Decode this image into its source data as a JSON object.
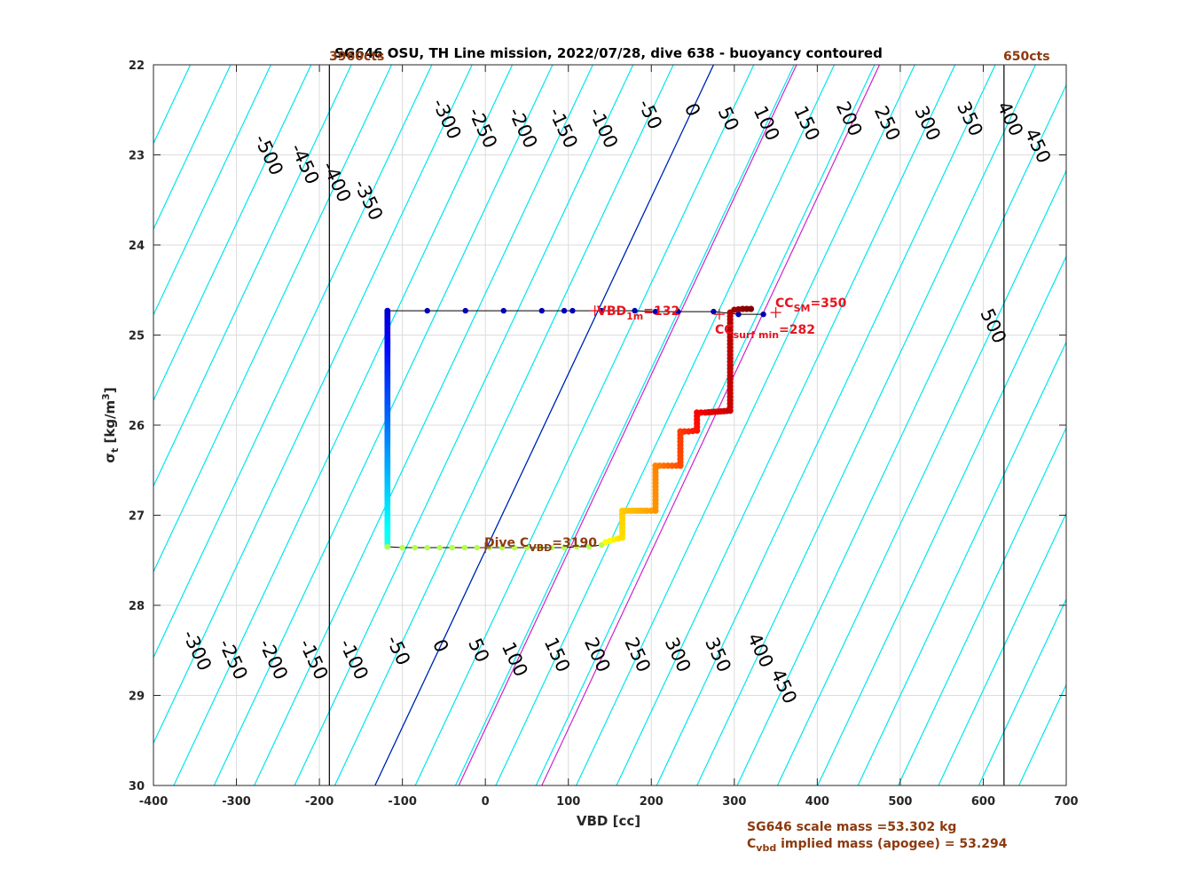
{
  "chart_data": {
    "type": "scatter",
    "title": "SG646 OSU, TH Line mission, 2022/07/28, dive 638 - buoyancy contoured",
    "xlabel": "VBD [cc]",
    "ylabel_main": "σ",
    "ylabel_sub": "t",
    "ylabel_rest": " [kg/m",
    "ylabel_sup": "3",
    "ylabel_end": "]",
    "xlim": [
      -400,
      700
    ],
    "ylim": [
      22,
      30
    ],
    "y_reversed": true,
    "grid": true,
    "xticks": [
      -400,
      -300,
      -200,
      -100,
      0,
      100,
      200,
      300,
      400,
      500,
      600,
      700
    ],
    "yticks": [
      22,
      23,
      24,
      25,
      26,
      27,
      28,
      29,
      30
    ],
    "contours": {
      "color": "#00e5ee",
      "levels": [
        -500,
        -450,
        -400,
        -350,
        -300,
        -250,
        -200,
        -150,
        -100,
        -50,
        0,
        50,
        100,
        150,
        200,
        250,
        300,
        350,
        400,
        450,
        500
      ],
      "x_at_sigma_22_for_zero": 275,
      "x_at_sigma_30_for_zero": -133,
      "spacing_cc_per_50": 48.5,
      "top_labels": [
        {
          "text": "-500",
          "level": -500,
          "sigma": 23.0
        },
        {
          "text": "-450",
          "level": -450,
          "sigma": 23.1
        },
        {
          "text": "-400",
          "level": -400,
          "sigma": 23.3
        },
        {
          "text": "-350",
          "level": -350,
          "sigma": 23.5
        },
        {
          "text": "-300",
          "level": -300,
          "sigma": 22.6
        },
        {
          "text": "-250",
          "level": -250,
          "sigma": 22.7
        },
        {
          "text": "-200",
          "level": -200,
          "sigma": 22.7
        },
        {
          "text": "-150",
          "level": -150,
          "sigma": 22.7
        },
        {
          "text": "-100",
          "level": -100,
          "sigma": 22.7
        },
        {
          "text": "-50",
          "level": -50,
          "sigma": 22.55
        },
        {
          "text": "0",
          "level": 0,
          "sigma": 22.5
        },
        {
          "text": "50",
          "level": 50,
          "sigma": 22.6
        },
        {
          "text": "100",
          "level": 100,
          "sigma": 22.65
        },
        {
          "text": "150",
          "level": 150,
          "sigma": 22.65
        },
        {
          "text": "200",
          "level": 200,
          "sigma": 22.6
        },
        {
          "text": "250",
          "level": 250,
          "sigma": 22.65
        },
        {
          "text": "300",
          "level": 300,
          "sigma": 22.65
        },
        {
          "text": "350",
          "level": 350,
          "sigma": 22.6
        },
        {
          "text": "400",
          "level": 400,
          "sigma": 22.6
        },
        {
          "text": "450",
          "level": 450,
          "sigma": 22.9
        },
        {
          "text": "500",
          "level": 500,
          "sigma": 24.9
        }
      ],
      "bottom_labels": [
        {
          "text": "-300",
          "level": -300,
          "sigma": 28.5
        },
        {
          "text": "-250",
          "level": -250,
          "sigma": 28.6
        },
        {
          "text": "-200",
          "level": -200,
          "sigma": 28.6
        },
        {
          "text": "-150",
          "level": -150,
          "sigma": 28.6
        },
        {
          "text": "-100",
          "level": -100,
          "sigma": 28.6
        },
        {
          "text": "-50",
          "level": -50,
          "sigma": 28.5
        },
        {
          "text": "0",
          "level": 0,
          "sigma": 28.45
        },
        {
          "text": "50",
          "level": 50,
          "sigma": 28.5
        },
        {
          "text": "100",
          "level": 100,
          "sigma": 28.6
        },
        {
          "text": "150",
          "level": 150,
          "sigma": 28.55
        },
        {
          "text": "200",
          "level": 200,
          "sigma": 28.55
        },
        {
          "text": "250",
          "level": 250,
          "sigma": 28.55
        },
        {
          "text": "300",
          "level": 300,
          "sigma": 28.55
        },
        {
          "text": "350",
          "level": 350,
          "sigma": 28.55
        },
        {
          "text": "400",
          "level": 400,
          "sigma": 28.5
        },
        {
          "text": "450",
          "level": 450,
          "sigma": 28.9
        }
      ]
    },
    "zero_line": {
      "color": "#0016b4",
      "x_top": 275,
      "x_bottom": -133
    },
    "magenta_lines": {
      "color": "#cc22cc",
      "lines": [
        {
          "x_top": 375,
          "x_bottom": -32
        },
        {
          "x_top": 475,
          "x_bottom": 68
        }
      ]
    },
    "vertical_lines": [
      {
        "x": -188,
        "label": "3960cts"
      },
      {
        "x": 625,
        "label": "650cts"
      }
    ],
    "track": {
      "color": "#000000",
      "points": [
        [
          -118,
          24.73
        ],
        [
          -70,
          24.73
        ],
        [
          -24,
          24.73
        ],
        [
          22,
          24.73
        ],
        [
          68,
          24.73
        ],
        [
          95,
          24.73
        ],
        [
          105,
          24.73
        ],
        [
          140,
          24.73
        ],
        [
          180,
          24.73
        ],
        [
          205,
          24.74
        ],
        [
          232,
          24.74
        ],
        [
          275,
          24.74
        ],
        [
          305,
          24.77
        ],
        [
          335,
          24.77
        ]
      ],
      "descent_x": -118,
      "descent_sigma": [
        24.73,
        27.35
      ],
      "bottom_points": [
        [
          -118,
          27.35
        ],
        [
          -100,
          27.36
        ],
        [
          -85,
          27.36
        ],
        [
          -70,
          27.36
        ],
        [
          -55,
          27.36
        ],
        [
          -40,
          27.36
        ],
        [
          -25,
          27.36
        ],
        [
          -10,
          27.36
        ],
        [
          5,
          27.36
        ],
        [
          20,
          27.36
        ],
        [
          35,
          27.36
        ],
        [
          50,
          27.36
        ],
        [
          65,
          27.36
        ],
        [
          80,
          27.36
        ],
        [
          95,
          27.36
        ],
        [
          110,
          27.35
        ],
        [
          125,
          27.35
        ],
        [
          140,
          27.33
        ]
      ],
      "ascent_points": [
        [
          145,
          27.3
        ],
        [
          155,
          27.27
        ],
        [
          165,
          27.25
        ],
        [
          165,
          26.95
        ],
        [
          180,
          26.95
        ],
        [
          195,
          26.95
        ],
        [
          205,
          26.95
        ],
        [
          205,
          26.45
        ],
        [
          215,
          26.45
        ],
        [
          225,
          26.45
        ],
        [
          235,
          26.45
        ],
        [
          235,
          26.07
        ],
        [
          245,
          26.07
        ],
        [
          255,
          26.06
        ],
        [
          255,
          25.86
        ],
        [
          265,
          25.86
        ],
        [
          280,
          25.85
        ],
        [
          295,
          25.84
        ],
        [
          295,
          24.75
        ],
        [
          300,
          24.72
        ],
        [
          310,
          24.71
        ],
        [
          320,
          24.71
        ]
      ]
    },
    "annotations": {
      "vbd1m": {
        "prefix": "VBD",
        "sub": "1m",
        "suffix": "=132",
        "x": 132,
        "sigma": 24.73
      },
      "ccsm": {
        "prefix": "CC",
        "sub": "SM",
        "suffix": "=350",
        "x": 350,
        "sigma": 24.75
      },
      "ccsurf": {
        "prefix": "CC",
        "sub": "surf min",
        "suffix": "=282",
        "x": 282,
        "sigma": 24.77
      },
      "dive_cvbd": {
        "prefix": "Dive C",
        "sub": "VBD",
        "suffix": "=3190",
        "x": 0,
        "sigma": 27.36
      }
    },
    "notes": {
      "line1": "SG646 scale mass =53.302 kg",
      "line2_prefix": "C",
      "line2_sub": "vbd",
      "line2_suffix": " implied mass (apogee) = 53.294"
    }
  }
}
